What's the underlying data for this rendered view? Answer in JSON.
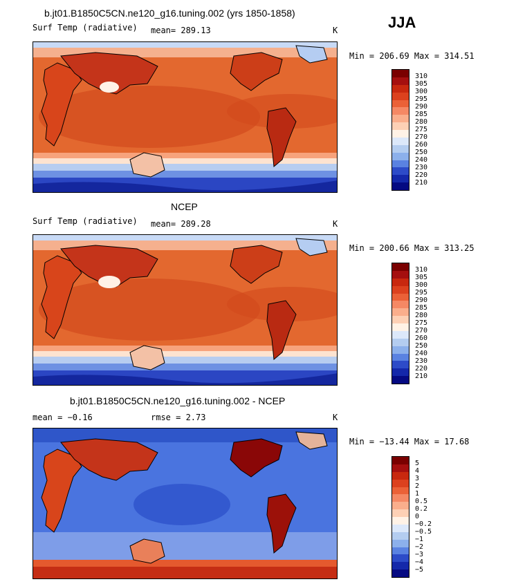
{
  "season": "JJA",
  "panels": [
    {
      "title": "b.jt01.B1850C5CN.ne120_g16.tuning.002 (yrs 1850-1858)",
      "left_label": "Surf Temp (radiative)",
      "mid_label": "mean= 289.13",
      "unit": "K",
      "minmax": "Min = 206.69 Max = 314.51",
      "colorbar": {
        "labels": [
          "310",
          "305",
          "300",
          "295",
          "290",
          "285",
          "280",
          "275",
          "270",
          "260",
          "250",
          "240",
          "230",
          "220",
          "210"
        ],
        "colors": [
          "#7a0000",
          "#a50f0f",
          "#c8280f",
          "#dc411e",
          "#eb6137",
          "#f58864",
          "#faae8c",
          "#fdd0b5",
          "#fff2e6",
          "#dce8fa",
          "#b4cdf0",
          "#8cb0eb",
          "#5a82e1",
          "#2d4bc8",
          "#1428aa",
          "#050a82"
        ]
      }
    },
    {
      "title": "NCEP",
      "left_label": "Surf Temp (radiative)",
      "mid_label": "mean= 289.28",
      "unit": "K",
      "minmax": "Min = 200.66 Max = 313.25",
      "colorbar": {
        "labels": [
          "310",
          "305",
          "300",
          "295",
          "290",
          "285",
          "280",
          "275",
          "270",
          "260",
          "250",
          "240",
          "230",
          "220",
          "210"
        ],
        "colors": [
          "#7a0000",
          "#a50f0f",
          "#c8280f",
          "#dc411e",
          "#eb6137",
          "#f58864",
          "#faae8c",
          "#fdd0b5",
          "#fff2e6",
          "#dce8fa",
          "#b4cdf0",
          "#8cb0eb",
          "#5a82e1",
          "#2d4bc8",
          "#1428aa",
          "#050a82"
        ]
      }
    },
    {
      "title": "b.jt01.B1850C5CN.ne120_g16.tuning.002 - NCEP",
      "left_label": "mean =  −0.16",
      "mid_label": "rmse =    2.73",
      "unit": "K",
      "minmax": "Min = −13.44 Max =  17.68",
      "colorbar": {
        "labels": [
          "5",
          "4",
          "3",
          "2",
          "1",
          "0.5",
          "0.2",
          "0",
          "−0.2",
          "−0.5",
          "−1",
          "−2",
          "−3",
          "−4",
          "−5"
        ],
        "colors": [
          "#7a0000",
          "#a50f0f",
          "#c8280f",
          "#dc411e",
          "#eb6137",
          "#f58864",
          "#faae8c",
          "#fdd0b5",
          "#fff2e6",
          "#dce8fa",
          "#b4cdf0",
          "#8cb0eb",
          "#5a82e1",
          "#2d4bc8",
          "#1428aa",
          "#050a82"
        ]
      }
    }
  ]
}
